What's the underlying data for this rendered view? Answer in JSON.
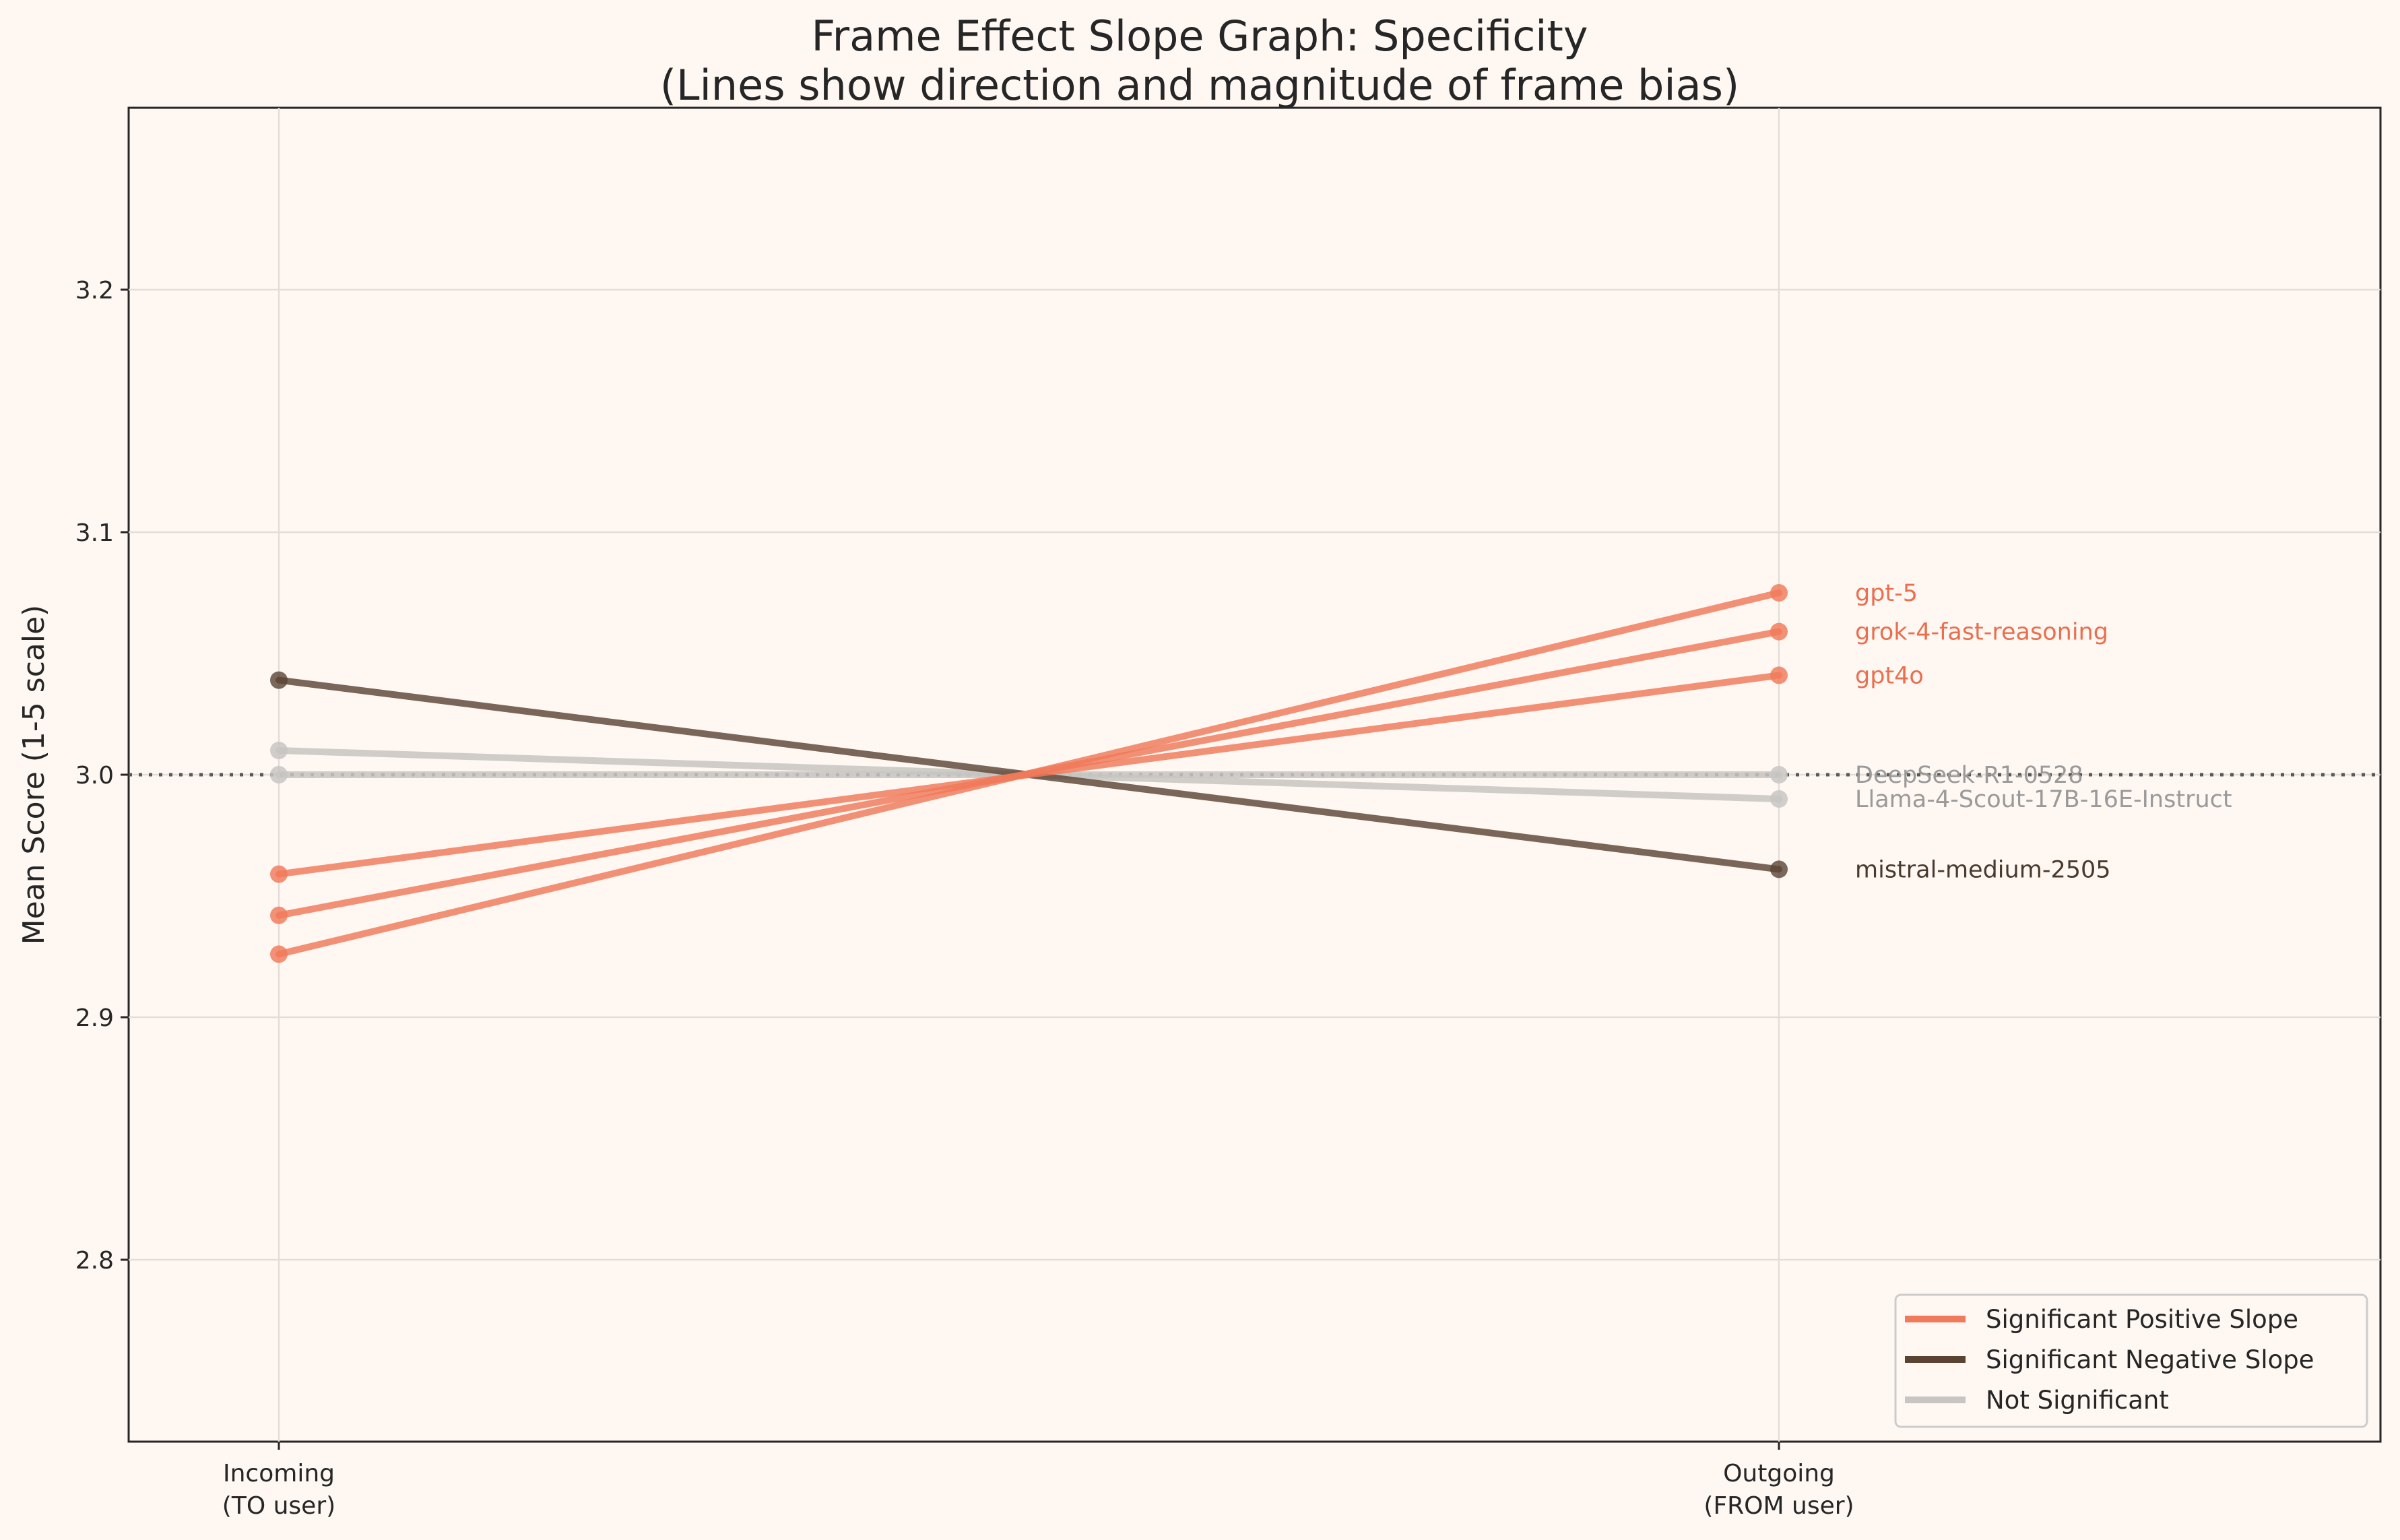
{
  "chart_data": {
    "type": "line",
    "title_lines": [
      "Frame Effect Slope Graph: Specificity",
      "(Lines show direction and magnitude of frame bias)"
    ],
    "ylabel": "Mean Score (1-5 scale)",
    "xlabel": "",
    "ylim": [
      2.725,
      3.275
    ],
    "yticks": [
      "2.8",
      "2.9",
      "3.0",
      "3.1",
      "3.2"
    ],
    "ytick_values": [
      2.8,
      2.9,
      3.0,
      3.1,
      3.2
    ],
    "categories": [
      {
        "line1": "Incoming",
        "line2": "(TO user)"
      },
      {
        "line1": "Outgoing",
        "line2": "(FROM user)"
      }
    ],
    "reference_line": 3.0,
    "grid": true,
    "legend_placement": "lower-right",
    "colors": {
      "positive": "#f07a5a",
      "negative": "#5a4333",
      "not_significant": "#c8c6c3",
      "reference": "#595959"
    },
    "series": [
      {
        "name": "gpt-5",
        "values": [
          2.926,
          3.075
        ],
        "class": "positive"
      },
      {
        "name": "grok-4-fast-reasoning",
        "values": [
          2.942,
          3.059
        ],
        "class": "positive"
      },
      {
        "name": "gpt4o",
        "values": [
          2.959,
          3.041
        ],
        "class": "positive"
      },
      {
        "name": "DeepSeek-R1-0528",
        "values": [
          3.0,
          3.0
        ],
        "class": "not_significant"
      },
      {
        "name": "Llama-4-Scout-17B-16E-Instruct",
        "values": [
          3.01,
          2.99
        ],
        "class": "not_significant"
      },
      {
        "name": "mistral-medium-2505",
        "values": [
          3.039,
          2.961
        ],
        "class": "negative"
      }
    ],
    "legend": [
      {
        "label": "Significant Positive Slope",
        "class": "positive"
      },
      {
        "label": "Significant Negative Slope",
        "class": "negative"
      },
      {
        "label": "Not Significant",
        "class": "not_significant"
      }
    ]
  }
}
